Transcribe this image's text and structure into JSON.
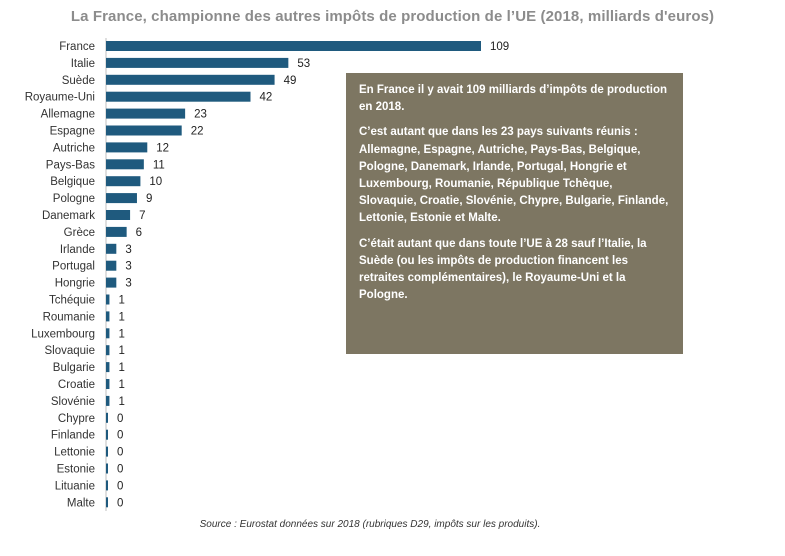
{
  "chart_data": {
    "type": "bar",
    "orientation": "horizontal",
    "title": "La France, championne des autres impôts de production de l’UE (2018, milliards d'euros)",
    "categories": [
      "France",
      "Italie",
      "Suède",
      "Royaume-Uni",
      "Allemagne",
      "Espagne",
      "Autriche",
      "Pays-Bas",
      "Belgique",
      "Pologne",
      "Danemark",
      "Grèce",
      "Irlande",
      "Portugal",
      "Hongrie",
      "Tchéquie",
      "Roumanie",
      "Luxembourg",
      "Slovaquie",
      "Bulgarie",
      "Croatie",
      "Slovénie",
      "Chypre",
      "Finlande",
      "Lettonie",
      "Estonie",
      "Lituanie",
      "Malte"
    ],
    "values": [
      109,
      53,
      49,
      42,
      23,
      22,
      12,
      11,
      10,
      9,
      7,
      6,
      3,
      3,
      3,
      1,
      1,
      1,
      1,
      1,
      1,
      1,
      0,
      0,
      0,
      0,
      0,
      0
    ],
    "xlim": [
      0,
      109
    ],
    "bar_color": "#1f5a7e",
    "grid": false,
    "legend": "none"
  },
  "annotation": {
    "paragraphs": [
      "En France il y avait 109 milliards d’impôts de production  en 2018.",
      "C’est autant que dans les 23 pays suivants réunis : Allemagne, Espagne, Autriche, Pays-Bas, Belgique, Pologne, Danemark, Irlande, Portugal, Hongrie et Luxembourg, Roumanie, République Tchèque, Slovaquie, Croatie, Slovénie, Chypre, Bulgarie, Finlande, Lettonie, Estonie et Malte.",
      "C’était autant que dans toute l’UE à 28 sauf l’Italie, la Suède (ou les impôts de production financent les retraites complémentaires), le Royaume-Uni et la Pologne."
    ],
    "background_color": "#7d7662"
  },
  "source": "Source : Eurostat données sur 2018 (rubriques D29, impôts sur les produits)."
}
